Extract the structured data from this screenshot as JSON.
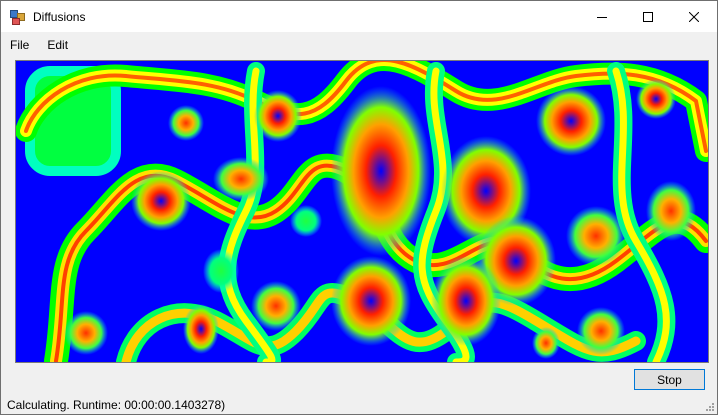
{
  "window": {
    "title": "Diffusions",
    "icon": "app-icon"
  },
  "menu": {
    "items": [
      "File",
      "Edit"
    ]
  },
  "canvas": {
    "description_icon": "diffusion-heatmap",
    "palette": {
      "low": "#0000ff",
      "mid": "#00ff00",
      "high": "#ff0000"
    }
  },
  "controls": {
    "stop_label": "Stop"
  },
  "status": {
    "text": "Calculating. Runtime: 00:00:00.1403278)"
  }
}
